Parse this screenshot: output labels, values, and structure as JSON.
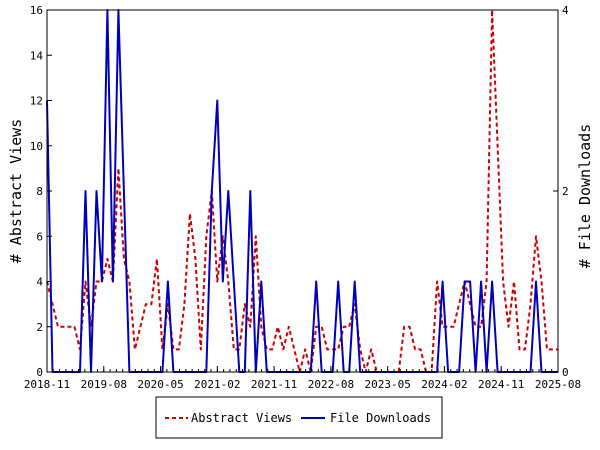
{
  "chart_data": {
    "type": "line",
    "xlabel": "",
    "ylabel_left": "# Abstract Views",
    "ylabel_right": "# File Downloads",
    "x_tick_labels": [
      "2018-11",
      "2019-08",
      "2020-05",
      "2021-02",
      "2021-11",
      "2022-08",
      "2023-05",
      "2024-02",
      "2024-11",
      "2025-08"
    ],
    "y_left_ticks": [
      "0",
      "2",
      "4",
      "6",
      "8",
      "10",
      "12",
      "14",
      "16"
    ],
    "y_right_ticks": [
      "0",
      "2",
      "4"
    ],
    "ylim_left": [
      0,
      16
    ],
    "ylim_right": [
      0,
      4
    ],
    "x_months_start": "2018-11",
    "x_months_end": "2025-08",
    "grid": false,
    "legend_position": "bottom-center",
    "series": [
      {
        "name": "Abstract Views",
        "axis": "left",
        "color": "#cc0000",
        "style": "dashed",
        "values": [
          4,
          3,
          2,
          2,
          2,
          2,
          1,
          4,
          2,
          4,
          4,
          5,
          4,
          9,
          5,
          4,
          1,
          2,
          3,
          3,
          5,
          1,
          3,
          1,
          1,
          3,
          7,
          5,
          1,
          6,
          8,
          4,
          6,
          4,
          1,
          1,
          3,
          2,
          6,
          2,
          1,
          1,
          2,
          1,
          2,
          1,
          0,
          1,
          0,
          2,
          2,
          1,
          1,
          1,
          2,
          2,
          3,
          1,
          0,
          1,
          0,
          0,
          0,
          0,
          0,
          2,
          2,
          1,
          1,
          0,
          0,
          4,
          2,
          2,
          2,
          3,
          4,
          3,
          2,
          2,
          4,
          16,
          10,
          4,
          2,
          4,
          1,
          1,
          3,
          6,
          4,
          1,
          1,
          1
        ]
      },
      {
        "name": "File Downloads",
        "axis": "right",
        "color": "#0000bb",
        "style": "solid",
        "values": [
          3,
          0,
          0,
          0,
          0,
          0,
          0,
          2,
          0,
          2,
          1,
          4,
          1,
          4,
          2,
          0,
          0,
          0,
          0,
          0,
          0,
          0,
          1,
          0,
          0,
          0,
          0,
          0,
          0,
          0,
          2,
          3,
          1,
          2,
          1,
          0,
          0,
          2,
          0,
          1,
          0,
          0,
          0,
          0,
          0,
          0,
          0,
          0,
          0,
          1,
          0,
          0,
          0,
          1,
          0,
          0,
          1,
          0,
          0,
          0,
          0,
          0,
          0,
          0,
          0,
          0,
          0,
          0,
          0,
          0,
          0,
          0,
          1,
          0,
          0,
          0,
          1,
          1,
          0,
          1,
          0,
          1,
          0,
          0,
          0,
          0,
          0,
          0,
          0,
          1,
          0,
          0,
          0,
          0
        ]
      }
    ]
  },
  "legend": {
    "items": [
      {
        "label": "Abstract Views",
        "color": "#cc0000",
        "style": "dashed"
      },
      {
        "label": "File Downloads",
        "color": "#0000bb",
        "style": "solid"
      }
    ]
  }
}
